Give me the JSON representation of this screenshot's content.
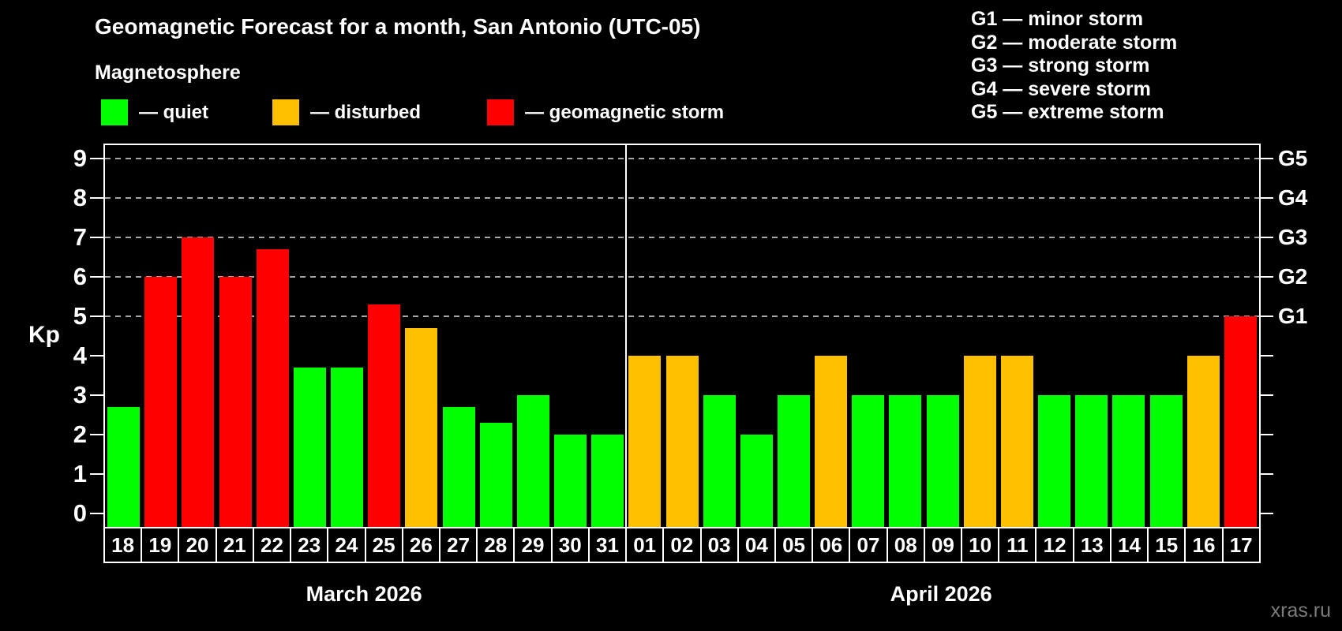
{
  "title": "Geomagnetic Forecast for a month, San Antonio (UTC-05)",
  "subtitle": "Magnetosphere",
  "legend": {
    "items": [
      {
        "key": "quiet",
        "label": "— quiet",
        "color": "#00ff00"
      },
      {
        "key": "disturbed",
        "label": "— disturbed",
        "color": "#ffc000"
      },
      {
        "key": "storm",
        "label": "— geomagnetic storm",
        "color": "#ff0000"
      }
    ]
  },
  "g_scale_legend": [
    "G1 — minor storm",
    "G2 — moderate storm",
    "G3 — strong storm",
    "G4 — severe storm",
    "G5 — extreme storm"
  ],
  "y_axis": {
    "label": "Kp",
    "ticks": [
      0,
      1,
      2,
      3,
      4,
      5,
      6,
      7,
      8,
      9
    ]
  },
  "right_axis": {
    "labels": [
      {
        "text": "G1",
        "kp": 5
      },
      {
        "text": "G2",
        "kp": 6
      },
      {
        "text": "G3",
        "kp": 7
      },
      {
        "text": "G4",
        "kp": 8
      },
      {
        "text": "G5",
        "kp": 9
      }
    ]
  },
  "watermark": "xras.ru",
  "chart_data": {
    "type": "bar",
    "title": "Geomagnetic Forecast for a month, San Antonio (UTC-05)",
    "xlabel": "",
    "ylabel": "Kp",
    "ylim": [
      0,
      9
    ],
    "grid": "dashed horizontal at Kp 5,6,7,8,9",
    "legend_position": "top-left",
    "status_colors": {
      "quiet": "#00ff00",
      "disturbed": "#ffc000",
      "storm": "#ff0000"
    },
    "months": [
      {
        "label": "March 2026",
        "days": [
          {
            "day": "18",
            "kp": 2.7,
            "status": "quiet"
          },
          {
            "day": "19",
            "kp": 6.0,
            "status": "storm"
          },
          {
            "day": "20",
            "kp": 7.0,
            "status": "storm"
          },
          {
            "day": "21",
            "kp": 6.0,
            "status": "storm"
          },
          {
            "day": "22",
            "kp": 6.7,
            "status": "storm"
          },
          {
            "day": "23",
            "kp": 3.7,
            "status": "quiet"
          },
          {
            "day": "24",
            "kp": 3.7,
            "status": "quiet"
          },
          {
            "day": "25",
            "kp": 5.3,
            "status": "storm"
          },
          {
            "day": "26",
            "kp": 4.7,
            "status": "disturbed"
          },
          {
            "day": "27",
            "kp": 2.7,
            "status": "quiet"
          },
          {
            "day": "28",
            "kp": 2.3,
            "status": "quiet"
          },
          {
            "day": "29",
            "kp": 3.0,
            "status": "quiet"
          },
          {
            "day": "30",
            "kp": 2.0,
            "status": "quiet"
          },
          {
            "day": "31",
            "kp": 2.0,
            "status": "quiet"
          }
        ]
      },
      {
        "label": "April 2026",
        "days": [
          {
            "day": "01",
            "kp": 4.0,
            "status": "disturbed"
          },
          {
            "day": "02",
            "kp": 4.0,
            "status": "disturbed"
          },
          {
            "day": "03",
            "kp": 3.0,
            "status": "quiet"
          },
          {
            "day": "04",
            "kp": 2.0,
            "status": "quiet"
          },
          {
            "day": "05",
            "kp": 3.0,
            "status": "quiet"
          },
          {
            "day": "06",
            "kp": 4.0,
            "status": "disturbed"
          },
          {
            "day": "07",
            "kp": 3.0,
            "status": "quiet"
          },
          {
            "day": "08",
            "kp": 3.0,
            "status": "quiet"
          },
          {
            "day": "09",
            "kp": 3.0,
            "status": "quiet"
          },
          {
            "day": "10",
            "kp": 4.0,
            "status": "disturbed"
          },
          {
            "day": "11",
            "kp": 4.0,
            "status": "disturbed"
          },
          {
            "day": "12",
            "kp": 3.0,
            "status": "quiet"
          },
          {
            "day": "13",
            "kp": 3.0,
            "status": "quiet"
          },
          {
            "day": "14",
            "kp": 3.0,
            "status": "quiet"
          },
          {
            "day": "15",
            "kp": 3.0,
            "status": "quiet"
          },
          {
            "day": "16",
            "kp": 4.0,
            "status": "disturbed"
          },
          {
            "day": "17",
            "kp": 5.0,
            "status": "storm"
          }
        ]
      }
    ]
  }
}
